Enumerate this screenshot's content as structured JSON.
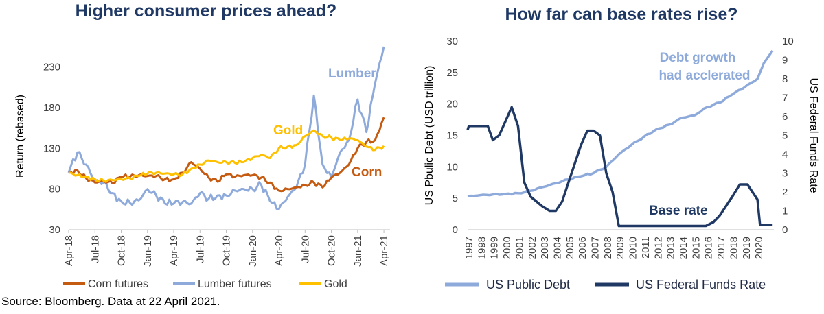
{
  "titles": {
    "left": "Higher consumer prices ahead?",
    "right": "How far can base rates rise?"
  },
  "source": "Source: Bloomberg. Data at 22 April 2021.",
  "colors": {
    "corn": "#c55a11",
    "lumber": "#8eaadb",
    "gold": "#ffc000",
    "debt": "#8eaadb",
    "rate": "#1f3864",
    "title": "#1f3864"
  },
  "chart_data": [
    {
      "type": "line",
      "title": "Higher consumer prices ahead?",
      "ylabel": "Return (rebased)",
      "xlabel": "",
      "ylim": [
        30,
        260
      ],
      "yticks": [
        30,
        80,
        130,
        180,
        230
      ],
      "xlim": [
        "2018-04",
        "2021-04"
      ],
      "xticks": [
        "Apr-18",
        "Jul-18",
        "Oct-18",
        "Jan-19",
        "Apr-19",
        "Jul-19",
        "Oct-19",
        "Jan-20",
        "Apr-20",
        "Jul-20",
        "Oct-20",
        "Jan-21",
        "Apr-21"
      ],
      "legend_position": "bottom",
      "grid": false,
      "series": [
        {
          "name": "Corn futures",
          "label": "Corn",
          "x": [
            "2018-04",
            "2018-05",
            "2018-06",
            "2018-07",
            "2018-08",
            "2018-09",
            "2018-10",
            "2018-11",
            "2018-12",
            "2019-01",
            "2019-02",
            "2019-03",
            "2019-04",
            "2019-05",
            "2019-06",
            "2019-07",
            "2019-08",
            "2019-09",
            "2019-10",
            "2019-11",
            "2019-12",
            "2020-01",
            "2020-02",
            "2020-03",
            "2020-04",
            "2020-05",
            "2020-06",
            "2020-07",
            "2020-08",
            "2020-09",
            "2020-10",
            "2020-11",
            "2020-12",
            "2021-01",
            "2021-02",
            "2021-03",
            "2021-04"
          ],
          "values": [
            100,
            103,
            93,
            88,
            90,
            87,
            95,
            95,
            97,
            96,
            96,
            92,
            92,
            100,
            113,
            105,
            94,
            89,
            98,
            95,
            97,
            97,
            94,
            88,
            78,
            80,
            82,
            85,
            88,
            82,
            94,
            100,
            110,
            130,
            138,
            140,
            168
          ]
        },
        {
          "name": "Lumber futures",
          "label": "Lumber",
          "x": [
            "2018-04",
            "2018-05",
            "2018-06",
            "2018-07",
            "2018-08",
            "2018-09",
            "2018-10",
            "2018-11",
            "2018-12",
            "2019-01",
            "2019-02",
            "2019-03",
            "2019-04",
            "2019-05",
            "2019-06",
            "2019-07",
            "2019-08",
            "2019-09",
            "2019-10",
            "2019-11",
            "2019-12",
            "2020-01",
            "2020-02",
            "2020-03",
            "2020-04",
            "2020-05",
            "2020-06",
            "2020-07",
            "2020-08",
            "2020-09",
            "2020-10",
            "2020-11",
            "2020-12",
            "2021-01",
            "2021-02",
            "2021-03",
            "2021-04"
          ],
          "values": [
            100,
            125,
            110,
            90,
            88,
            75,
            65,
            63,
            66,
            80,
            72,
            62,
            62,
            64,
            62,
            75,
            68,
            72,
            72,
            78,
            80,
            80,
            85,
            65,
            55,
            70,
            82,
            110,
            195,
            110,
            95,
            125,
            140,
            190,
            150,
            210,
            255
          ]
        },
        {
          "name": "Gold",
          "label": "Gold",
          "x": [
            "2018-04",
            "2018-05",
            "2018-06",
            "2018-07",
            "2018-08",
            "2018-09",
            "2018-10",
            "2018-11",
            "2018-12",
            "2019-01",
            "2019-02",
            "2019-03",
            "2019-04",
            "2019-05",
            "2019-06",
            "2019-07",
            "2019-08",
            "2019-09",
            "2019-10",
            "2019-11",
            "2019-12",
            "2020-01",
            "2020-02",
            "2020-03",
            "2020-04",
            "2020-05",
            "2020-06",
            "2020-07",
            "2020-08",
            "2020-09",
            "2020-10",
            "2020-11",
            "2020-12",
            "2021-01",
            "2021-02",
            "2021-03",
            "2021-04"
          ],
          "values": [
            100,
            97,
            95,
            92,
            90,
            91,
            92,
            93,
            96,
            99,
            100,
            99,
            98,
            98,
            105,
            110,
            115,
            113,
            113,
            112,
            113,
            118,
            122,
            118,
            130,
            132,
            134,
            145,
            152,
            145,
            143,
            140,
            142,
            140,
            132,
            128,
            133
          ]
        }
      ]
    },
    {
      "type": "line",
      "title": "How far can base rates rise?",
      "ylabel": "US Pbulic Debt (USD trillion)",
      "ylabel_right": "US Federal Funds Rate",
      "ylim": [
        0,
        30
      ],
      "yticks": [
        0,
        5,
        10,
        15,
        20,
        25,
        30
      ],
      "ylim_right": [
        0,
        10
      ],
      "yticks_right": [
        0,
        1,
        2,
        3,
        4,
        5,
        6,
        7,
        8,
        9,
        10
      ],
      "xlim": [
        1997,
        2021.3
      ],
      "xticks": [
        "1997",
        "1998",
        "1999",
        "2000",
        "2001",
        "2002",
        "2003",
        "2004",
        "2005",
        "2006",
        "2007",
        "2008",
        "2009",
        "2010",
        "2011",
        "2012",
        "2013",
        "2014",
        "2015",
        "2016",
        "2017",
        "2018",
        "2019",
        "2020"
      ],
      "legend_position": "bottom",
      "grid": false,
      "annotations": [
        "Debt growth had acclerated",
        "Base rate"
      ],
      "series": [
        {
          "name": "US Public Debt",
          "axis": "left",
          "x": [
            1997,
            1998,
            1999,
            2000,
            2001,
            2002,
            2003,
            2004,
            2005,
            2006,
            2007,
            2008,
            2009,
            2010,
            2011,
            2012,
            2013,
            2014,
            2015,
            2016,
            2017,
            2018,
            2019,
            2020,
            2020.5,
            2021.2
          ],
          "values": [
            5.3,
            5.5,
            5.6,
            5.7,
            5.8,
            6.2,
            6.8,
            7.4,
            8.0,
            8.5,
            9.0,
            10.0,
            12.0,
            13.5,
            14.8,
            16.0,
            16.7,
            17.8,
            18.2,
            19.5,
            20.2,
            21.5,
            22.7,
            24.0,
            26.5,
            28.5
          ]
        },
        {
          "name": "US Federal Funds Rate",
          "axis": "right",
          "x": [
            1997,
            1997.1,
            1998.6,
            1999.0,
            1999.5,
            2000.0,
            2000.5,
            2001.0,
            2001.5,
            2002.0,
            2002.9,
            2003.5,
            2004.0,
            2004.5,
            2005.0,
            2005.5,
            2006.0,
            2006.5,
            2007.0,
            2007.5,
            2008.0,
            2008.5,
            2009.0,
            2015.9,
            2016.5,
            2017.0,
            2017.5,
            2018.0,
            2018.6,
            2019.2,
            2019.6,
            2020.0,
            2020.2,
            2021.2
          ],
          "values": [
            5.3,
            5.5,
            5.5,
            4.75,
            5.0,
            5.75,
            6.5,
            5.5,
            2.5,
            1.75,
            1.25,
            1.0,
            1.0,
            1.5,
            2.5,
            3.5,
            4.5,
            5.25,
            5.25,
            5.0,
            3.0,
            2.0,
            0.2,
            0.2,
            0.4,
            0.75,
            1.25,
            1.75,
            2.4,
            2.4,
            2.0,
            1.6,
            0.25,
            0.25
          ]
        }
      ]
    }
  ]
}
